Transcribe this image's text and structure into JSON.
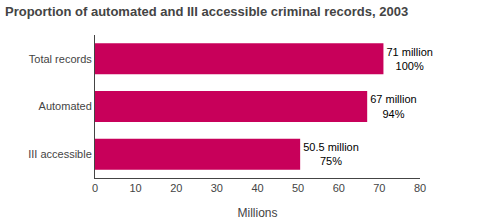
{
  "chart_data": {
    "type": "bar",
    "orientation": "horizontal",
    "title": "Proportion of automated and III accessible criminal records, 2003",
    "categories": [
      "III accessible",
      "Automated",
      "Total records"
    ],
    "values": [
      50.5,
      67,
      71
    ],
    "value_labels": [
      "50.5 million",
      "67 million",
      "71 million"
    ],
    "shares": [
      75,
      94,
      100
    ],
    "share_labels": [
      "75%",
      "94%",
      "100%"
    ],
    "data_labels": true,
    "color": "#C8005A",
    "xlabel": "Millions",
    "xlim": [
      0,
      80
    ],
    "xticks": [
      0,
      10,
      20,
      30,
      40,
      50,
      60,
      70,
      80
    ],
    "grid": false
  }
}
